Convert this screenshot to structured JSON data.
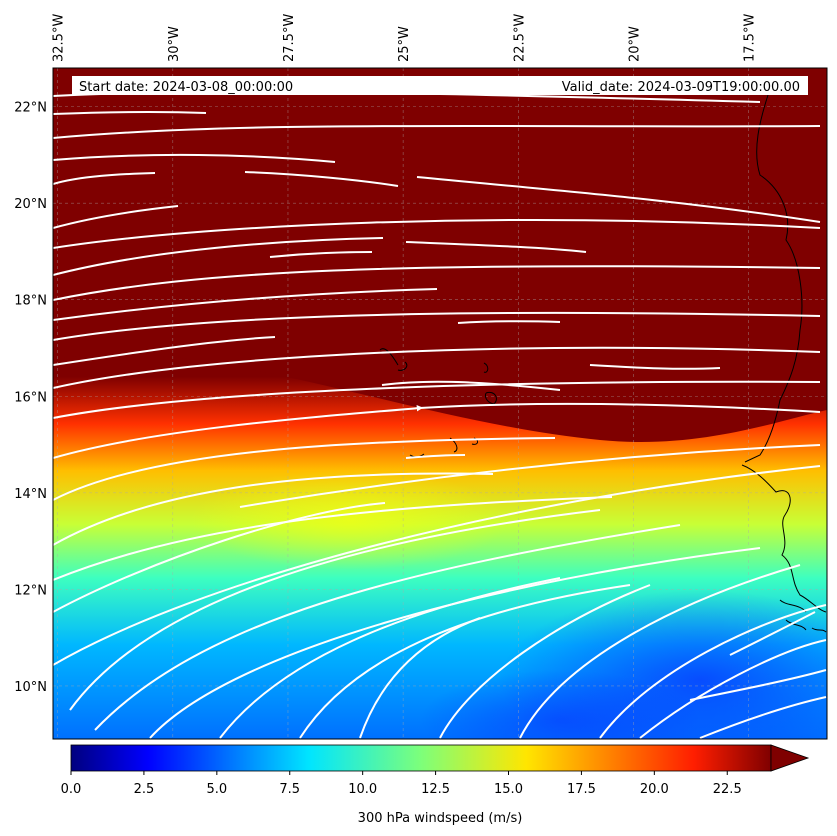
{
  "header": {
    "start_date": "Start date: 2024-03-08_00:00:00",
    "valid_date": "Valid_date: 2024-03-09T19:00:00.00"
  },
  "map": {
    "lon_range": [
      -32.6,
      -15.8
    ],
    "lat_range": [
      8.9,
      22.8
    ],
    "lon_ticks": [
      "32.5°W",
      "30°W",
      "27.5°W",
      "25°W",
      "22.5°W",
      "20°W",
      "17.5°W"
    ],
    "lat_ticks": [
      "22°N",
      "20°N",
      "18°N",
      "16°N",
      "14°N",
      "12°N",
      "10°N"
    ],
    "gridlines": true
  },
  "colorbar": {
    "label": "300 hPa windspeed (m/s)",
    "ticks": [
      "0.0",
      "2.5",
      "5.0",
      "7.5",
      "10.0",
      "12.5",
      "15.0",
      "17.5",
      "20.0",
      "22.5"
    ],
    "range": [
      0,
      24
    ],
    "extend": "max",
    "colormap": "jet"
  }
}
